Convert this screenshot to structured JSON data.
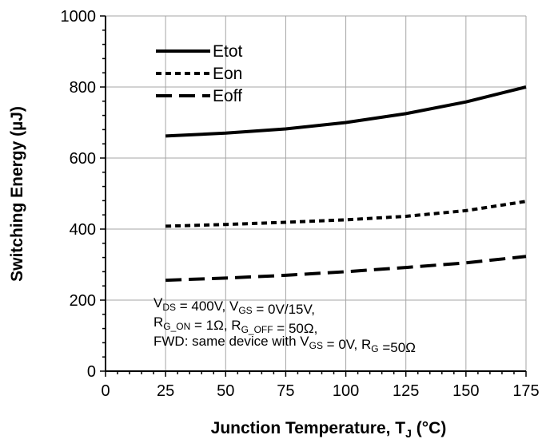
{
  "chart_data": {
    "type": "line",
    "xlabel_main": "Junction Temperature, T",
    "xlabel_sub": "J",
    "xlabel_unit": " (°C)",
    "ylabel": "Switching Energy (µJ)",
    "xlim": [
      0,
      175
    ],
    "ylim": [
      0,
      1000
    ],
    "x_ticks": [
      0,
      25,
      50,
      75,
      100,
      125,
      150,
      175
    ],
    "y_ticks": [
      0,
      200,
      400,
      600,
      800,
      1000
    ],
    "grid": true,
    "legend_position": "top-left",
    "series": [
      {
        "name": "Etot",
        "style": "solid",
        "x": [
          25,
          50,
          75,
          100,
          125,
          150,
          175
        ],
        "y": [
          662,
          670,
          682,
          700,
          725,
          758,
          800
        ]
      },
      {
        "name": "Eon",
        "style": "short-dash",
        "x": [
          25,
          50,
          75,
          100,
          125,
          150,
          175
        ],
        "y": [
          408,
          413,
          419,
          426,
          436,
          452,
          478
        ]
      },
      {
        "name": "Eoff",
        "style": "long-dash",
        "x": [
          25,
          50,
          75,
          100,
          125,
          150,
          175
        ],
        "y": [
          256,
          262,
          270,
          280,
          292,
          305,
          323
        ]
      }
    ],
    "annotation": {
      "line1": [
        {
          "t": "V"
        },
        {
          "t": "DS",
          "sub": true
        },
        {
          "t": " = 400V, V"
        },
        {
          "t": "GS",
          "sub": true
        },
        {
          "t": " = 0V/15V,"
        }
      ],
      "line2": [
        {
          "t": "R"
        },
        {
          "t": "G_ON",
          "sub": true
        },
        {
          "t": " = 1Ω, R"
        },
        {
          "t": "G_OFF",
          "sub": true
        },
        {
          "t": " = 50Ω,"
        }
      ],
      "line3": [
        {
          "t": "FWD: same device with V"
        },
        {
          "t": "GS",
          "sub": true
        },
        {
          "t": " = 0V, R"
        },
        {
          "t": "G",
          "sub": true
        },
        {
          "t": " =50Ω"
        }
      ]
    }
  }
}
